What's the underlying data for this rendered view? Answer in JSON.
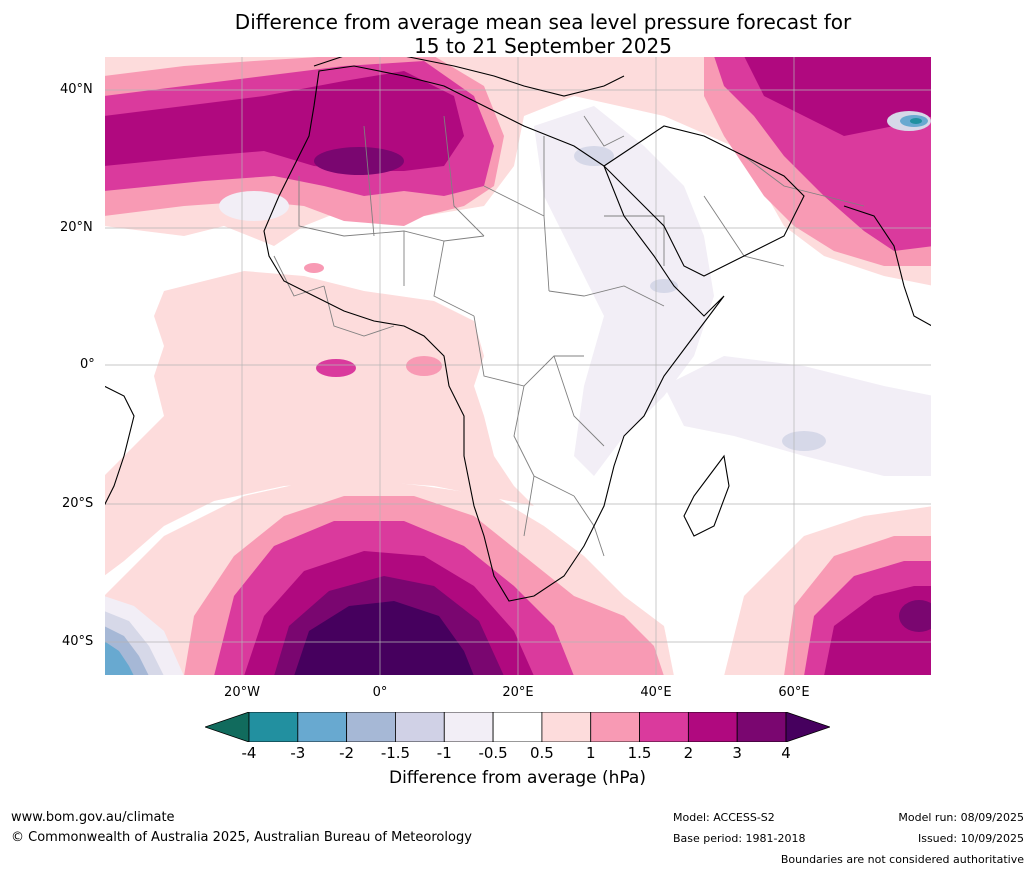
{
  "title": {
    "line1": "Difference from average mean sea level pressure forecast for",
    "line2": "15 to 21 September 2025"
  },
  "map": {
    "lat_labels": [
      "40°N",
      "20°N",
      "0°",
      "20°S",
      "40°S"
    ],
    "lon_labels": [
      "20°W",
      "0°",
      "20°E",
      "40°E",
      "60°E"
    ],
    "colors": {
      "ocean_blank": "#ffffff",
      "light_pink": "#fddcdc",
      "pink": "#f89ab4",
      "magenta": "#da3a9d",
      "deep_magenta": "#b0097f",
      "purple": "#7a0670",
      "dark_purple": "#46005e",
      "light_lilac": "#f2eef6",
      "lilac": "#d6d8e8",
      "blue_grey": "#a6b8d6",
      "steel_blue": "#68a9d0",
      "teal": "#2090a0",
      "country_border": "#808080",
      "coastline": "#000000"
    }
  },
  "colorbar": {
    "ticks": [
      "-4",
      "-3",
      "-2",
      "-1.5",
      "-1",
      "-0.5",
      "0.5",
      "1",
      "1.5",
      "2",
      "3",
      "4"
    ],
    "label": "Difference from average (hPa)",
    "colors": [
      "#116b5d",
      "#2290a0",
      "#68a9d0",
      "#a6b8d6",
      "#d0d1e6",
      "#f2eef6",
      "#ffffff",
      "#fddcdc",
      "#f89ab4",
      "#da3a9d",
      "#b0097f",
      "#7a0670",
      "#46005e"
    ]
  },
  "footer": {
    "url": "www.bom.gov.au/climate",
    "copyright": "© Commonwealth of Australia 2025, Australian Bureau of Meteorology",
    "model": "Model: ACCESS-S2",
    "base_period": "Base period: 1981-2018",
    "model_run": "Model run: 08/09/2025",
    "issued": "Issued: 10/09/2025",
    "disclaimer": "Boundaries are not considered authoritative"
  }
}
